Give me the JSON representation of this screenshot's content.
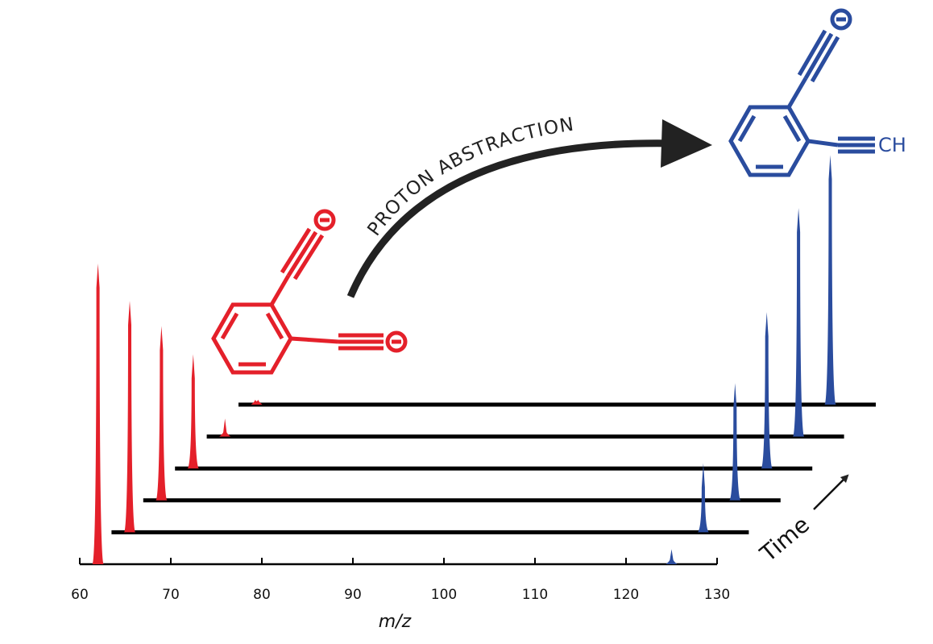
{
  "chart_data": {
    "type": "waterfall",
    "xlabel": "m/z",
    "xlim": [
      60,
      130
    ],
    "xticks": [
      60,
      70,
      80,
      90,
      100,
      110,
      120,
      130
    ],
    "series": [
      {
        "color": "#e4202a",
        "x": 62,
        "values": [
          100,
          77,
          58,
          38,
          6,
          1
        ]
      },
      {
        "color": "#2a4c9e",
        "x": 125,
        "values": [
          5,
          23,
          39,
          52,
          76,
          83
        ]
      }
    ],
    "time_label": "Time",
    "arrow_label": "PROTON ABSTRACTION",
    "product_label": "CH"
  }
}
